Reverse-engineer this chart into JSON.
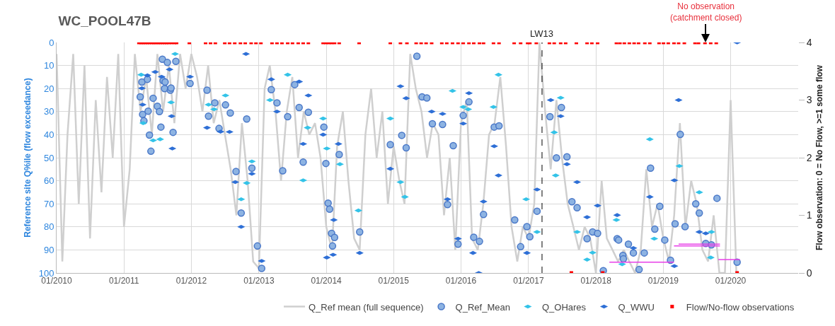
{
  "chart_data": {
    "type": "scatter",
    "title": "WC_POOL47B",
    "ylabel": "Reference site Q%ile (flow exceedance)",
    "y2label": "Flow observation: 0 = No Flow, >=1 some flow",
    "xlim": [
      "2010-01-01",
      "2021-01-01"
    ],
    "xticks": [
      {
        "value": "2010-01-01",
        "label": "01/2010"
      },
      {
        "value": "2011-01-01",
        "label": "01/2011"
      },
      {
        "value": "2012-01-01",
        "label": "01/2012"
      },
      {
        "value": "2013-01-01",
        "label": "01/2013"
      },
      {
        "value": "2014-01-01",
        "label": "01/2014"
      },
      {
        "value": "2015-01-01",
        "label": "01/2015"
      },
      {
        "value": "2016-01-01",
        "label": "01/2016"
      },
      {
        "value": "2017-01-01",
        "label": "01/2017"
      },
      {
        "value": "2018-01-01",
        "label": "01/2018"
      },
      {
        "value": "2019-01-01",
        "label": "01/2019"
      },
      {
        "value": "2020-01-01",
        "label": "01/2020"
      }
    ],
    "ylim": [
      100,
      0
    ],
    "yticks": [
      0,
      10,
      20,
      30,
      40,
      50,
      60,
      70,
      80,
      90,
      100
    ],
    "y2lim": [
      0,
      4
    ],
    "y2ticks": [
      0,
      1,
      2,
      3,
      4
    ],
    "grid": true,
    "legend": "bottom",
    "ref_lines": [
      {
        "axis": "x",
        "value": "2017-03-15",
        "label": "LW13",
        "color": "#000000",
        "line_style": "dashed"
      }
    ],
    "annotations": [
      "No observation\n(catchment closed)"
    ],
    "series": [
      {
        "name": "Q_Ref mean (full sequence)",
        "type": "line",
        "color": "#cfcfcf",
        "x": [
          "2010-01",
          "2010-02",
          "2010-03",
          "2010-04",
          "2010-05",
          "2010-06",
          "2010-07",
          "2010-08",
          "2010-09",
          "2010-10",
          "2010-11",
          "2010-12",
          "2011-01",
          "2011-02",
          "2011-03",
          "2011-04",
          "2011-05",
          "2011-06",
          "2011-07",
          "2011-08",
          "2011-09",
          "2011-10",
          "2011-11",
          "2011-12",
          "2012-01",
          "2012-02",
          "2012-03",
          "2012-04",
          "2012-05",
          "2012-06",
          "2012-07",
          "2012-08",
          "2012-09",
          "2012-10",
          "2012-11",
          "2012-12",
          "2013-01",
          "2013-02",
          "2013-03",
          "2013-04",
          "2013-05",
          "2013-06",
          "2013-07",
          "2013-08",
          "2013-09",
          "2013-10",
          "2013-11",
          "2013-12",
          "2014-01",
          "2014-02",
          "2014-03",
          "2014-04",
          "2014-05",
          "2014-06",
          "2014-07",
          "2014-08",
          "2014-09",
          "2014-10",
          "2014-11",
          "2014-12",
          "2015-01",
          "2015-02",
          "2015-03",
          "2015-04",
          "2015-05",
          "2015-06",
          "2015-07",
          "2015-08",
          "2015-09",
          "2015-10",
          "2015-11",
          "2015-12",
          "2016-01",
          "2016-02",
          "2016-03",
          "2016-04",
          "2016-05",
          "2016-06",
          "2016-07",
          "2016-08",
          "2016-09",
          "2016-10",
          "2016-11",
          "2016-12",
          "2017-01",
          "2017-02",
          "2017-03",
          "2017-04",
          "2017-05",
          "2017-06",
          "2017-07",
          "2017-08",
          "2017-09",
          "2017-10",
          "2017-11",
          "2017-12",
          "2018-01",
          "2018-02",
          "2018-03",
          "2018-04",
          "2018-05",
          "2018-06",
          "2018-07",
          "2018-08",
          "2018-09",
          "2018-10",
          "2018-11",
          "2018-12",
          "2019-01",
          "2019-02",
          "2019-03",
          "2019-04",
          "2019-05",
          "2019-06",
          "2019-07",
          "2019-08",
          "2019-09",
          "2019-10",
          "2019-11",
          "2019-12",
          "2020-01",
          "2020-02"
        ],
        "values": [
          5,
          95,
          40,
          5,
          70,
          10,
          85,
          25,
          65,
          15,
          50,
          5,
          80,
          55,
          5,
          30,
          15,
          40,
          5,
          30,
          10,
          35,
          5,
          20,
          5,
          15,
          30,
          10,
          35,
          25,
          40,
          55,
          75,
          35,
          60,
          95,
          98,
          20,
          10,
          30,
          60,
          30,
          15,
          50,
          30,
          40,
          35,
          50,
          80,
          90,
          45,
          30,
          60,
          85,
          90,
          40,
          20,
          50,
          30,
          70,
          45,
          60,
          70,
          5,
          20,
          30,
          50,
          35,
          40,
          75,
          50,
          90,
          35,
          25,
          85,
          90,
          70,
          40,
          35,
          15,
          45,
          80,
          95,
          80,
          85,
          70,
          0,
          30,
          55,
          25,
          50,
          70,
          80,
          90,
          80,
          85,
          100,
          60,
          85,
          90,
          95,
          90,
          95,
          100,
          90,
          55,
          80,
          70,
          85,
          95,
          75,
          35,
          80,
          60,
          70,
          90,
          95,
          75,
          100,
          100,
          25,
          100
        ]
      },
      {
        "name": "Q_Ref_Mean",
        "type": "scatter",
        "marker": "circle",
        "color": "#8db3e2",
        "x": [
          "2011-03-30",
          "2011-04-08",
          "2011-04-12",
          "2011-04-19",
          "2011-05-08",
          "2011-05-12",
          "2011-05-19",
          "2011-05-27",
          "2011-06-08",
          "2011-07-01",
          "2011-07-12",
          "2011-07-20",
          "2011-07-28",
          "2011-08-01",
          "2011-08-09",
          "2011-08-12",
          "2011-08-24",
          "2011-09-09",
          "2011-09-13",
          "2011-09-24",
          "2011-10-09",
          "2011-12-25",
          "2012-03-26",
          "2012-04-03",
          "2012-05-07",
          "2012-05-30",
          "2012-07-04",
          "2012-07-30",
          "2012-08-30",
          "2012-09-27",
          "2012-10-27",
          "2012-11-24",
          "2012-12-24",
          "2013-01-16",
          "2013-03-09",
          "2013-04-09",
          "2013-05-10",
          "2013-06-06",
          "2013-07-14",
          "2013-08-07",
          "2013-08-29",
          "2013-09-26",
          "2013-12-19",
          "2013-12-30",
          "2014-01-11",
          "2014-01-19",
          "2014-01-30",
          "2014-02-04",
          "2014-02-15",
          "2014-03-12",
          "2014-07-01",
          "2014-12-14",
          "2015-02-14",
          "2015-03-10",
          "2015-05-07",
          "2015-06-04",
          "2015-06-30",
          "2015-07-30",
          "2015-09-23",
          "2015-10-20",
          "2015-11-20",
          "2015-12-16",
          "2016-01-13",
          "2016-02-13",
          "2016-03-10",
          "2016-04-10",
          "2016-05-02",
          "2016-06-29",
          "2016-07-25",
          "2016-10-18",
          "2016-11-19",
          "2016-12-23",
          "2017-01-08",
          "2017-02-16",
          "2017-04-27",
          "2017-06-01",
          "2017-06-28",
          "2017-07-28",
          "2017-08-24",
          "2017-09-21",
          "2017-11-14",
          "2017-12-14",
          "2018-01-10",
          "2018-02-10",
          "2018-04-26",
          "2018-05-04",
          "2018-05-27",
          "2018-05-30",
          "2018-06-26",
          "2018-07-23",
          "2018-08-23",
          "2018-09-20",
          "2018-10-24",
          "2018-11-16",
          "2018-12-13",
          "2019-01-09",
          "2019-02-09",
          "2019-03-06",
          "2019-04-03",
          "2019-04-29",
          "2019-06-26",
          "2019-07-15",
          "2019-08-19",
          "2019-09-19",
          "2019-10-19",
          "2020-02-05"
        ],
        "values": [
          23.6,
          17.2,
          31.2,
          34,
          16,
          29.8,
          40.2,
          47.2,
          24.2,
          27.7,
          30,
          36.7,
          7.3,
          16.6,
          20,
          17.2,
          8.7,
          20.7,
          19.8,
          39,
          8.2,
          17.8,
          20.7,
          32,
          26.2,
          37.3,
          27.1,
          30.6,
          56,
          74,
          33.2,
          54.5,
          88.3,
          98,
          20.5,
          26.2,
          55.7,
          32.2,
          18.3,
          28.2,
          51.9,
          30.3,
          36.7,
          52.5,
          69.7,
          72.3,
          82.8,
          88.3,
          84.6,
          48.6,
          82.2,
          44.3,
          40.3,
          45.7,
          6,
          23.6,
          24.1,
          35.3,
          35.6,
          70.3,
          44.8,
          87.5,
          31.7,
          25.8,
          84.5,
          86.3,
          74.6,
          36.7,
          36.2,
          77,
          88.6,
          79.9,
          84.3,
          73.2,
          32.2,
          50.1,
          28.2,
          49.6,
          69.1,
          71.7,
          85.1,
          82.2,
          82.8,
          99,
          85.1,
          85.7,
          92.4,
          93.9,
          87.5,
          91.3,
          98.5,
          91.3,
          54.5,
          81,
          71.1,
          85.7,
          94.5,
          78.7,
          39.9,
          79.9,
          70,
          74,
          87.2,
          87.8,
          67.6,
          95.3
        ]
      },
      {
        "name": "Q_OHares",
        "type": "scatter",
        "color": "#33c3e8",
        "x": [
          "2011-04-04",
          "2011-04-15",
          "2011-06-08",
          "2011-07-16",
          "2011-09-13",
          "2011-10-05",
          "2012-04-03",
          "2012-05-03",
          "2012-07-04",
          "2012-09-27",
          "2012-10-27",
          "2012-11-24",
          "2013-03-02",
          "2013-06-06",
          "2013-08-29",
          "2013-09-22",
          "2013-12-15",
          "2014-01-04",
          "2014-03-16",
          "2014-06-24",
          "2014-12-14",
          "2015-02-07",
          "2015-03-03",
          "2015-11-16",
          "2016-01-13",
          "2016-02-09",
          "2016-06-25",
          "2016-07-22",
          "2016-12-19",
          "2017-02-16",
          "2017-05-20",
          "2017-05-28",
          "2017-06-24",
          "2017-09-21",
          "2017-11-14",
          "2017-12-14",
          "2018-04-22",
          "2018-05-23",
          "2018-10-20",
          "2018-11-13",
          "2019-03-29",
          "2019-07-15",
          "2019-09-15",
          "2019-09-19"
        ],
        "values": [
          14,
          35,
          42.5,
          42,
          26,
          5,
          27,
          29,
          23,
          68,
          61,
          51.6,
          25,
          14,
          59.8,
          37,
          33,
          46,
          52.8,
          72.9,
          33,
          60.6,
          67,
          21,
          28,
          29,
          28,
          14,
          68,
          82.2,
          39,
          57.7,
          24,
          82.2,
          94.2,
          91.2,
          77,
          96.2,
          42,
          85.1,
          53.6,
          65,
          93.3,
          82.2
        ]
      },
      {
        "name": "Q_WWU",
        "type": "scatter",
        "color": "#2e6fd6",
        "x": [
          "2011-04-08",
          "2011-04-12",
          "2011-05-08",
          "2011-06-19",
          "2011-07-24",
          "2011-09-05",
          "2011-09-16",
          "2011-09-20",
          "2011-12-25",
          "2012-03-26",
          "2012-06-07",
          "2012-07-26",
          "2012-08-26",
          "2012-09-27",
          "2012-10-23",
          "2012-11-24",
          "2013-01-16",
          "2013-03-09",
          "2013-04-09",
          "2013-08-07",
          "2013-08-29",
          "2013-09-26",
          "2013-12-15",
          "2014-01-04",
          "2014-02-07",
          "2014-02-11",
          "2014-03-08",
          "2014-07-01",
          "2014-12-14",
          "2015-02-07",
          "2015-03-10",
          "2015-07-26",
          "2015-09-23",
          "2015-10-20",
          "2015-12-16",
          "2016-01-13",
          "2016-02-13",
          "2016-03-06",
          "2016-04-06",
          "2016-05-02",
          "2016-06-29",
          "2016-07-22",
          "2016-12-23",
          "2017-02-16",
          "2017-05-01",
          "2017-06-24",
          "2017-07-28",
          "2017-09-21",
          "2017-11-14",
          "2018-01-10",
          "2018-04-26",
          "2018-07-23",
          "2018-10-20",
          "2019-03-02",
          "2019-03-02",
          "2019-03-25",
          "2019-07-15",
          "2019-08-19",
          "2020-02-05"
        ],
        "values": [
          19.9,
          27,
          14.3,
          12.8,
          14.9,
          11.7,
          32,
          46,
          14.9,
          37,
          38.7,
          38.8,
          60.6,
          80,
          5,
          57,
          94.8,
          16,
          30,
          17,
          44,
          23,
          40,
          93.3,
          92.1,
          77,
          44,
          91.3,
          54.8,
          19,
          24.2,
          30,
          31,
          68,
          85.1,
          35.2,
          22,
          91.3,
          100,
          69,
          45,
          57.7,
          91.3,
          63.8,
          25,
          32,
          52.8,
          60.6,
          75.8,
          70.8,
          74.9,
          89.2,
          67,
          59.8,
          97,
          25,
          82.2,
          82.8,
          0
        ]
      },
      {
        "name": "Flow/No-flow observations",
        "type": "scatter",
        "marker": "square",
        "axis": "y2",
        "color": "#ff0000",
        "x": [
          "2011-03-23",
          "2011-04-04",
          "2011-04-15",
          "2011-04-26",
          "2011-05-08",
          "2011-05-19",
          "2011-06-01",
          "2011-06-12",
          "2011-06-23",
          "2011-07-05",
          "2011-07-16",
          "2011-07-28",
          "2011-08-09",
          "2011-08-20",
          "2011-09-01",
          "2011-09-16",
          "2011-10-02",
          "2011-10-13",
          "2011-12-21",
          "2012-03-18",
          "2012-04-14",
          "2012-05-10",
          "2012-06-30",
          "2012-07-26",
          "2012-08-23",
          "2012-09-23",
          "2012-10-19",
          "2012-11-20",
          "2012-12-16",
          "2013-01-12",
          "2013-03-13",
          "2013-04-09",
          "2013-05-06",
          "2013-06-06",
          "2013-07-02",
          "2013-08-02",
          "2013-08-29",
          "2013-09-26",
          "2013-12-15",
          "2013-12-30",
          "2014-01-15",
          "2014-01-30",
          "2014-02-15",
          "2014-03-12",
          "2014-06-28",
          "2014-12-14",
          "2015-02-07",
          "2015-03-14",
          "2015-05-03",
          "2015-05-30",
          "2015-06-26",
          "2015-07-26",
          "2015-09-19",
          "2015-10-16",
          "2015-11-16",
          "2015-12-16",
          "2016-01-13",
          "2016-02-13",
          "2016-03-10",
          "2016-04-10",
          "2016-05-02",
          "2016-06-25",
          "2016-07-25",
          "2016-10-15",
          "2016-11-19",
          "2016-12-27",
          "2017-01-08",
          "2017-02-12",
          "2017-04-24",
          "2017-05-20",
          "2017-06-24",
          "2017-07-21",
          "2017-08-21",
          "2017-09-17",
          "2017-11-14",
          "2017-12-10",
          "2018-01-10",
          "2018-02-07",
          "2018-04-22",
          "2018-05-11",
          "2018-06-04",
          "2018-07-01",
          "2018-07-27",
          "2018-08-20",
          "2018-09-23",
          "2018-10-20",
          "2018-12-09",
          "2019-01-02",
          "2019-01-28",
          "2019-02-28",
          "2019-03-25",
          "2019-04-25",
          "2019-06-22",
          "2019-07-11",
          "2019-08-15",
          "2019-09-15",
          "2019-10-15",
          "2020-02-05"
        ],
        "values": [
          4,
          4,
          4,
          4,
          4,
          4,
          4,
          4,
          4,
          4,
          4,
          4,
          4,
          4,
          4,
          4,
          4,
          4,
          4,
          4,
          4,
          4,
          4,
          4,
          4,
          4,
          4,
          4,
          4,
          4,
          4,
          4,
          4,
          4,
          4,
          4,
          4,
          4,
          4,
          4,
          4,
          4,
          4,
          4,
          4,
          4,
          4,
          4,
          4,
          4,
          4,
          4,
          4,
          4,
          4,
          4,
          4,
          4,
          4,
          4,
          4,
          4,
          4,
          4,
          4,
          4,
          4,
          4,
          4,
          4,
          4,
          4,
          0,
          4,
          4,
          4,
          4,
          0,
          4,
          4,
          4,
          4,
          4,
          4,
          4,
          4,
          4,
          4,
          4,
          4,
          4,
          4,
          4,
          4,
          4,
          4,
          4,
          0
        ]
      },
      {
        "type": "line",
        "color": "#e83ee8",
        "x": [
          "2018-03-15",
          "2019-02-28",
          null,
          "2019-02-28",
          "2019-11-04",
          null,
          "2019-03-25",
          "2019-11-04",
          null,
          "2019-10-26",
          "2020-02-20"
        ],
        "values": [
          95.3,
          95.3,
          null,
          88.3,
          88.3,
          null,
          87.5,
          87.5,
          null,
          94.2,
          94.2
        ]
      }
    ]
  }
}
